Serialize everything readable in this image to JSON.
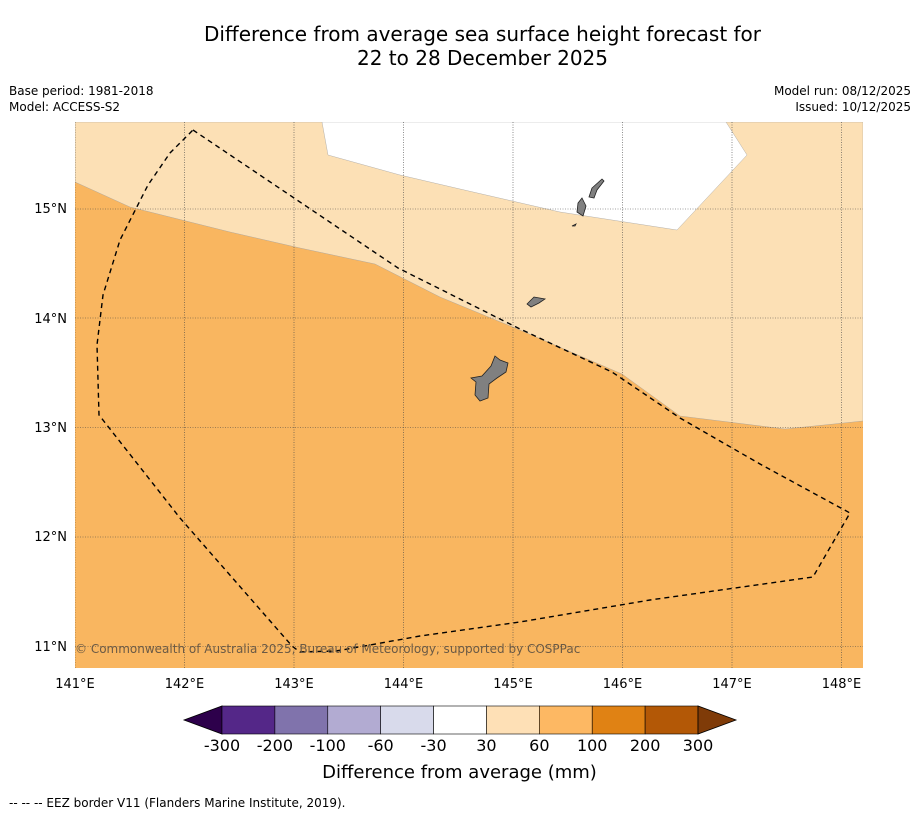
{
  "title": {
    "line1": "Difference from average sea surface height forecast for",
    "line2": "22 to 28 December 2025"
  },
  "meta": {
    "base_period": "Base period: 1981-2018",
    "model": "Model: ACCESS-S2",
    "model_run": "Model run: 08/12/2025",
    "issued": "Issued: 10/12/2025"
  },
  "map": {
    "lon_labels": [
      "141°E",
      "142°E",
      "143°E",
      "144°E",
      "145°E",
      "146°E",
      "147°E",
      "148°E"
    ],
    "lat_labels": [
      "15°N",
      "14°N",
      "13°N",
      "12°N",
      "11°N"
    ],
    "lon_range": [
      141,
      148.2
    ],
    "lat_range": [
      10.8,
      15.8
    ],
    "copyright": "© Commonwealth of Australia 2025, Bureau of Meteorology, supported by COSPPac",
    "colors": {
      "band_30_60": "#fce0b5",
      "band_60_100": "#f9b660",
      "band_m30_30": "#ffffff",
      "land": "#808080"
    }
  },
  "colorbar": {
    "title": "Difference from average (mm)",
    "ticks": [
      "-300",
      "-200",
      "-100",
      "-60",
      "-30",
      "30",
      "60",
      "100",
      "200",
      "300"
    ],
    "colors": [
      "#2d004b",
      "#542788",
      "#8073ac",
      "#b2abd2",
      "#d8daeb",
      "#ffffff",
      "#fee0b6",
      "#fdb863",
      "#e08214",
      "#b35806",
      "#7f3b08"
    ]
  },
  "footer": {
    "legend": "-- -- -- EEZ border V11 (Flanders Marine Institute, 2019)."
  }
}
